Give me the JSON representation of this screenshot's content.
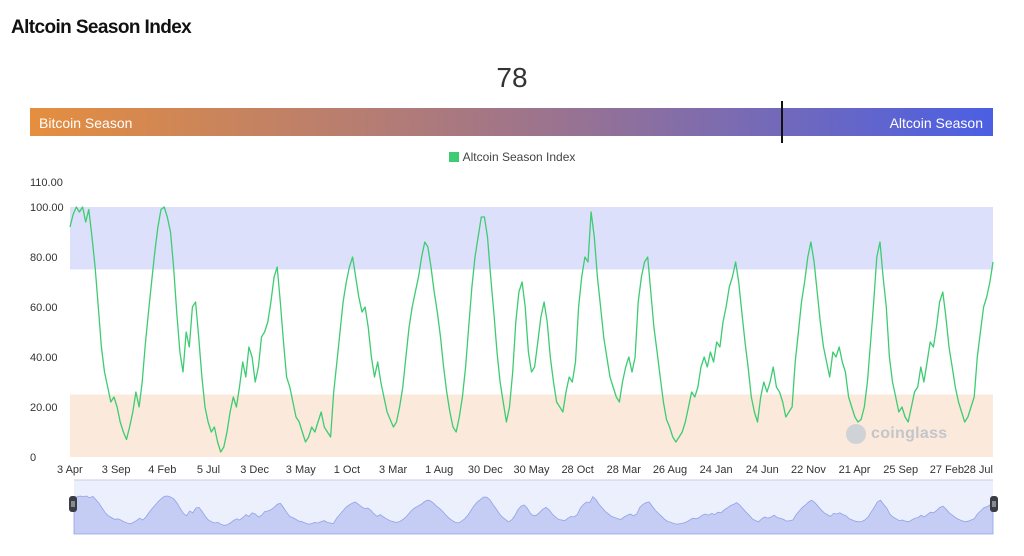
{
  "page": {
    "title": "Altcoin Season Index"
  },
  "index": {
    "value": "78",
    "left_label": "Bitcoin Season",
    "right_label": "Altcoin Season"
  },
  "watermark": {
    "text": "coinglass",
    "icon": "coinglass-logo-icon"
  },
  "chart_data": {
    "type": "line",
    "title": "",
    "xlabel": "",
    "ylabel": "",
    "ylim": [
      0,
      110
    ],
    "y_ticks": [
      "110.00",
      "100.00",
      "80.00",
      "60.00",
      "40.00",
      "20.00",
      "0"
    ],
    "x_tick_labels": [
      "3 Apr",
      "3 Sep",
      "4 Feb",
      "5 Jul",
      "3 Dec",
      "3 May",
      "1 Oct",
      "3 Mar",
      "1 Aug",
      "30 Dec",
      "30 May",
      "28 Oct",
      "28 Mar",
      "26 Aug",
      "24 Jan",
      "24 Jun",
      "22 Nov",
      "21 Apr",
      "25 Sep",
      "27 Feb",
      "28 Jul"
    ],
    "legend": {
      "position": "top-center",
      "entries": [
        "Altcoin Season Index"
      ]
    },
    "grid": false,
    "colors": {
      "line": "#3dcc72",
      "altcoin_band": "#dde0fb",
      "bitcoin_band": "#fbe9dc"
    },
    "bands": [
      {
        "from": 75,
        "to": 100,
        "color": "#dde0fb"
      },
      {
        "from": 0,
        "to": 25,
        "color": "#fbe9dc"
      }
    ],
    "series": [
      {
        "name": "Altcoin Season Index",
        "values": [
          92,
          97,
          100,
          98,
          100,
          94,
          99,
          88,
          76,
          60,
          44,
          34,
          28,
          22,
          24,
          20,
          14,
          10,
          7,
          12,
          18,
          26,
          20,
          30,
          45,
          58,
          70,
          82,
          92,
          99,
          100,
          96,
          90,
          76,
          58,
          42,
          34,
          50,
          44,
          60,
          62,
          48,
          32,
          20,
          14,
          10,
          12,
          6,
          2,
          4,
          10,
          18,
          24,
          20,
          28,
          38,
          32,
          44,
          40,
          30,
          36,
          48,
          50,
          54,
          62,
          72,
          76,
          62,
          46,
          32,
          28,
          22,
          16,
          14,
          10,
          6,
          8,
          12,
          10,
          14,
          18,
          12,
          10,
          8,
          26,
          38,
          50,
          62,
          70,
          76,
          80,
          72,
          64,
          58,
          60,
          52,
          40,
          32,
          38,
          30,
          24,
          18,
          15,
          12,
          14,
          20,
          28,
          40,
          52,
          60,
          66,
          72,
          80,
          86,
          84,
          76,
          66,
          58,
          48,
          36,
          26,
          18,
          12,
          10,
          16,
          24,
          36,
          52,
          68,
          80,
          88,
          96,
          96,
          88,
          72,
          58,
          42,
          30,
          22,
          14,
          20,
          34,
          54,
          66,
          70,
          60,
          42,
          34,
          36,
          46,
          56,
          62,
          54,
          40,
          30,
          22,
          20,
          18,
          26,
          32,
          30,
          38,
          60,
          72,
          80,
          78,
          98,
          88,
          72,
          60,
          48,
          40,
          32,
          28,
          24,
          22,
          30,
          36,
          40,
          34,
          40,
          62,
          72,
          78,
          80,
          66,
          52,
          42,
          32,
          22,
          15,
          12,
          8,
          6,
          8,
          10,
          14,
          20,
          26,
          24,
          28,
          36,
          40,
          36,
          42,
          38,
          46,
          44,
          54,
          60,
          68,
          72,
          78,
          70,
          58,
          46,
          36,
          24,
          18,
          14,
          24,
          30,
          26,
          30,
          36,
          28,
          26,
          22,
          16,
          18,
          20,
          38,
          50,
          62,
          70,
          80,
          86,
          78,
          66,
          54,
          44,
          38,
          32,
          42,
          40,
          44,
          38,
          34,
          24,
          20,
          16,
          14,
          15,
          20,
          30,
          46,
          62,
          80,
          86,
          72,
          60,
          40,
          30,
          24,
          18,
          20,
          16,
          14,
          20,
          26,
          28,
          36,
          30,
          38,
          46,
          44,
          52,
          62,
          66,
          56,
          44,
          36,
          28,
          22,
          18,
          14,
          16,
          20,
          24,
          40,
          50,
          60,
          64,
          70,
          78
        ]
      }
    ]
  }
}
